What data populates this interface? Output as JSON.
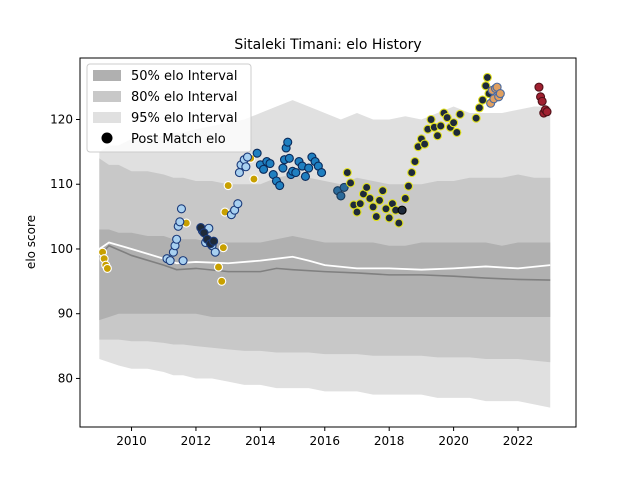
{
  "chart_data": {
    "type": "scatter",
    "title": "Sitaleki Timani: elo History",
    "xlabel": "",
    "ylabel": "elo score",
    "xlim": [
      2008.4,
      2023.8
    ],
    "ylim": [
      72.5,
      129.5
    ],
    "xticks": [
      2010,
      2012,
      2014,
      2016,
      2018,
      2020,
      2022
    ],
    "yticks": [
      80,
      90,
      100,
      110,
      120
    ],
    "grid": false,
    "legend": {
      "position": "top-left",
      "entries": [
        {
          "label": "50% elo Interval",
          "color": "#b0b0b0"
        },
        {
          "label": "80% elo Interval",
          "color": "#c8c8c8"
        },
        {
          "label": "95% elo Interval",
          "color": "#e0e0e0"
        },
        {
          "label": "Post Match elo",
          "color": "#000000"
        }
      ]
    },
    "band_x": [
      2009.0,
      2009.3,
      2009.6,
      2010.0,
      2010.5,
      2011.0,
      2011.3,
      2011.6,
      2012.0,
      2012.5,
      2013.0,
      2013.5,
      2014.0,
      2014.5,
      2015.0,
      2015.5,
      2016.0,
      2016.5,
      2017.0,
      2017.5,
      2018.0,
      2018.5,
      2019.0,
      2019.5,
      2020.0,
      2020.5,
      2021.0,
      2021.5,
      2022.0,
      2022.5,
      2023.0
    ],
    "band_95": {
      "upper": [
        115,
        116,
        116,
        117,
        117,
        117.5,
        118,
        118,
        118.5,
        119,
        119.5,
        120,
        121,
        122,
        123,
        122,
        121,
        120,
        121,
        120,
        120,
        120.5,
        120,
        121,
        122,
        121,
        121,
        121,
        121.5,
        122,
        122
      ],
      "lower": [
        83,
        82.5,
        82,
        81.5,
        81.5,
        81,
        80.5,
        80.5,
        80,
        80,
        79.5,
        79,
        79,
        78.5,
        78.5,
        78.5,
        78,
        78,
        78,
        77.5,
        77.5,
        77.5,
        77.5,
        77,
        77,
        77,
        76.5,
        76.5,
        76.5,
        76,
        75.5
      ]
    },
    "band_80": {
      "upper": [
        114,
        113,
        113,
        112,
        112,
        111.5,
        111,
        111,
        110.5,
        110.5,
        110,
        110,
        110,
        111,
        111.5,
        111,
        110.5,
        110,
        111,
        110.5,
        110,
        110,
        110,
        110.5,
        110.5,
        111,
        111,
        111,
        111.5,
        111,
        111
      ]
    },
    "band_50": {
      "upper": [
        103,
        103,
        102.5,
        102.5,
        102,
        102,
        101.5,
        101.5,
        101.5,
        101,
        101,
        101,
        101,
        101.5,
        102,
        101.5,
        101,
        101,
        101,
        101,
        100.5,
        100.5,
        101,
        101,
        101,
        101,
        101,
        100.5,
        101,
        101,
        101
      ],
      "lower": [
        89,
        89.5,
        90,
        90,
        90,
        90,
        90,
        90,
        90,
        89.5,
        89.5,
        89.5,
        89.5,
        89.5,
        89.5,
        89.5,
        89.5,
        89.5,
        89.5,
        89.5,
        89.5,
        89.5,
        89.5,
        89.5,
        89.5,
        89.5,
        89.5,
        89.5,
        89.5,
        89.5,
        89.5
      ]
    },
    "mean_line": {
      "color": "#808080",
      "x": [
        2009.0,
        2009.3,
        2010.0,
        2011.0,
        2011.4,
        2012.0,
        2013.0,
        2014.0,
        2014.5,
        2015.0,
        2016.0,
        2017.0,
        2018.0,
        2019.0,
        2020.0,
        2021.0,
        2022.0,
        2023.0
      ],
      "y": [
        99,
        100.5,
        99,
        97.5,
        96.8,
        97,
        96.5,
        96.5,
        97,
        96.8,
        96.5,
        96.3,
        96,
        96,
        95.8,
        95.5,
        95.3,
        95.2
      ]
    },
    "median_line": {
      "color": "#ffffff",
      "x": [
        2009.0,
        2009.3,
        2010.0,
        2011.0,
        2011.4,
        2012.0,
        2013.0,
        2014.0,
        2014.5,
        2015.0,
        2015.5,
        2016.0,
        2017.0,
        2018.0,
        2019.0,
        2020.0,
        2021.0,
        2022.0,
        2023.0
      ],
      "y": [
        100,
        101,
        100,
        98.5,
        97.8,
        98,
        97.8,
        98.2,
        98.5,
        98.8,
        98.2,
        97.5,
        97,
        97,
        96.8,
        97,
        97.3,
        97,
        97.5
      ]
    },
    "series": [
      {
        "marker": "dot",
        "fill": "#c8a000",
        "edge": "#ffffff",
        "x": [
          2009.1,
          2009.15,
          2009.2,
          2009.25,
          2011.7,
          2012.7,
          2012.8,
          2012.85,
          2012.9,
          2013.0,
          2013.7,
          2013.8
        ],
        "y": [
          99.5,
          98.5,
          97.5,
          97,
          104,
          97.2,
          95,
          100.2,
          105.7,
          109.8,
          114,
          110.8
        ]
      },
      {
        "marker": "dot",
        "fill": "#a8d0f0",
        "edge": "#1a3a7a",
        "x": [
          2011.1,
          2011.2,
          2011.3,
          2011.35,
          2011.4,
          2011.45,
          2011.5,
          2011.55,
          2011.6,
          2012.2,
          2012.3,
          2012.4,
          2012.5,
          2012.6,
          2013.1,
          2013.2,
          2013.3,
          2013.35,
          2013.4,
          2013.5,
          2013.55,
          2013.6
        ],
        "y": [
          98.5,
          98.2,
          99.5,
          100.5,
          101.5,
          103.5,
          104.2,
          106.2,
          98.2,
          102.8,
          101,
          103.2,
          100.5,
          99.5,
          105.3,
          106,
          107,
          111.8,
          113,
          113.8,
          112.7,
          114.2
        ]
      },
      {
        "marker": "dot",
        "fill": "#1e2a3a",
        "edge": "#1a3a7a",
        "x": [
          2012.15,
          2012.25,
          2012.35,
          2012.45,
          2012.55
        ],
        "y": [
          103.3,
          102.5,
          101.5,
          100.8,
          101.2
        ]
      },
      {
        "marker": "dot",
        "fill": "#1f7fc0",
        "edge": "#0a2a5a",
        "x": [
          2013.9,
          2014.0,
          2014.1,
          2014.2,
          2014.3,
          2014.4,
          2014.5,
          2014.6,
          2014.7,
          2014.75,
          2014.8,
          2014.85,
          2014.9,
          2014.95,
          2015.0,
          2015.1,
          2015.2,
          2015.3,
          2015.4,
          2015.5,
          2015.6,
          2015.7,
          2015.8,
          2015.9
        ],
        "y": [
          114.8,
          113,
          112.3,
          113.5,
          113.2,
          111.5,
          110.5,
          109.8,
          112.5,
          113.8,
          115.6,
          116.5,
          114,
          111.5,
          112,
          111.8,
          113.5,
          112.8,
          111.2,
          112.5,
          114.2,
          113.5,
          112.8,
          111.8
        ]
      },
      {
        "marker": "dot",
        "fill": "#2a6a9a",
        "edge": "#1a3a5a",
        "x": [
          2016.4,
          2016.5,
          2016.6
        ],
        "y": [
          109,
          108.2,
          109.5
        ]
      },
      {
        "marker": "dot",
        "fill": "#1e2a3a",
        "edge": "#e0e020",
        "x": [
          2016.7,
          2016.8,
          2016.9,
          2017.0,
          2017.1,
          2017.2,
          2017.3,
          2017.4,
          2017.5,
          2017.6,
          2017.7,
          2017.8,
          2017.9,
          2018.0,
          2018.1,
          2018.2,
          2018.3,
          2018.5,
          2018.6,
          2018.7,
          2018.8,
          2018.9,
          2019.0,
          2019.1,
          2019.2,
          2019.3,
          2019.4,
          2019.5,
          2019.6,
          2019.7,
          2019.8,
          2019.9,
          2020.0,
          2020.1,
          2020.2
        ],
        "y": [
          111.8,
          110.2,
          106.8,
          105.7,
          107,
          108.5,
          109.5,
          107.8,
          106.5,
          105,
          107.5,
          109,
          106.2,
          104.8,
          107,
          106,
          104,
          107.8,
          109.7,
          111.8,
          113.5,
          115.8,
          117,
          116.2,
          118.5,
          120,
          118.8,
          117.5,
          119,
          121,
          120.3,
          118.8,
          119.5,
          118,
          120.8
        ]
      },
      {
        "marker": "dot",
        "fill": "#1e2a3a",
        "edge": "#000000",
        "x": [
          2018.4
        ],
        "y": [
          106
        ]
      },
      {
        "marker": "dot",
        "fill": "#1e2a3a",
        "edge": "#e0e020",
        "x": [
          2020.7,
          2020.8,
          2020.9,
          2021.0,
          2021.05,
          2021.1
        ],
        "y": [
          120.2,
          121.8,
          123,
          125.2,
          126.5,
          124
        ]
      },
      {
        "marker": "dot",
        "fill": "#e0a060",
        "edge": "#4a6aa0",
        "x": [
          2021.15,
          2021.2,
          2021.25,
          2021.3,
          2021.35,
          2021.4,
          2021.45
        ],
        "y": [
          122.5,
          124.5,
          123.2,
          124.8,
          125,
          123.5,
          124
        ]
      },
      {
        "marker": "dot",
        "fill": "#a02030",
        "edge": "#501018",
        "x": [
          2022.65,
          2022.7,
          2022.75,
          2022.8,
          2022.85,
          2022.9
        ],
        "y": [
          125,
          123.5,
          122.8,
          121,
          121.5,
          121.2
        ]
      }
    ]
  }
}
